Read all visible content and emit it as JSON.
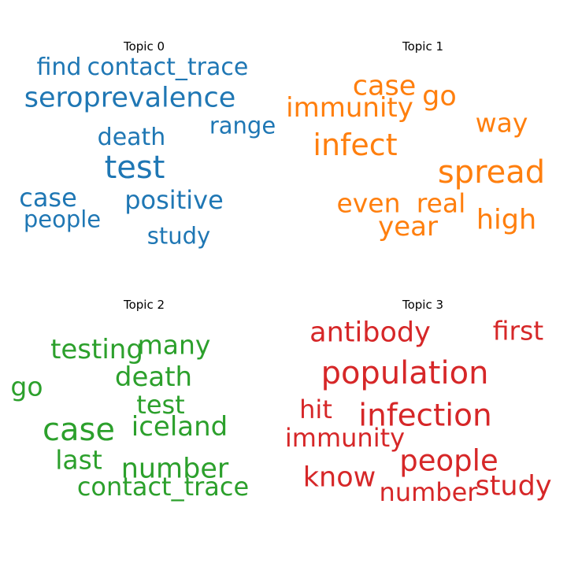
{
  "chart_data": [
    {
      "type": "wordcloud",
      "title": "Topic 0",
      "color": "#1f77b4",
      "words": [
        {
          "text": "test",
          "weight": 1.0
        },
        {
          "text": "seroprevalence",
          "weight": 0.82
        },
        {
          "text": "positive",
          "weight": 0.7
        },
        {
          "text": "case",
          "weight": 0.68
        },
        {
          "text": "contact_trace",
          "weight": 0.6
        },
        {
          "text": "find",
          "weight": 0.6
        },
        {
          "text": "death",
          "weight": 0.6
        },
        {
          "text": "range",
          "weight": 0.58
        },
        {
          "text": "people",
          "weight": 0.58
        },
        {
          "text": "study",
          "weight": 0.58
        }
      ]
    },
    {
      "type": "wordcloud",
      "title": "Topic 1",
      "color": "#ff7f0e",
      "words": [
        {
          "text": "spread",
          "weight": 1.0
        },
        {
          "text": "infect",
          "weight": 0.93
        },
        {
          "text": "case",
          "weight": 0.82
        },
        {
          "text": "go",
          "weight": 0.82
        },
        {
          "text": "high",
          "weight": 0.82
        },
        {
          "text": "immunity",
          "weight": 0.75
        },
        {
          "text": "year",
          "weight": 0.75
        },
        {
          "text": "even",
          "weight": 0.72
        },
        {
          "text": "real",
          "weight": 0.72
        },
        {
          "text": "way",
          "weight": 0.72
        }
      ]
    },
    {
      "type": "wordcloud",
      "title": "Topic 2",
      "color": "#2ca02c",
      "words": [
        {
          "text": "case",
          "weight": 1.0
        },
        {
          "text": "number",
          "weight": 0.82
        },
        {
          "text": "death",
          "weight": 0.76
        },
        {
          "text": "iceland",
          "weight": 0.76
        },
        {
          "text": "testing",
          "weight": 0.76
        },
        {
          "text": "many",
          "weight": 0.74
        },
        {
          "text": "last",
          "weight": 0.74
        },
        {
          "text": "go",
          "weight": 0.74
        },
        {
          "text": "contact_trace",
          "weight": 0.7
        },
        {
          "text": "test",
          "weight": 0.68
        }
      ]
    },
    {
      "type": "wordcloud",
      "title": "Topic 3",
      "color": "#d62728",
      "words": [
        {
          "text": "population",
          "weight": 1.0
        },
        {
          "text": "infection",
          "weight": 0.98
        },
        {
          "text": "people",
          "weight": 0.9
        },
        {
          "text": "antibody",
          "weight": 0.82
        },
        {
          "text": "study",
          "weight": 0.8
        },
        {
          "text": "know",
          "weight": 0.8
        },
        {
          "text": "first",
          "weight": 0.72
        },
        {
          "text": "number",
          "weight": 0.7
        },
        {
          "text": "immunity",
          "weight": 0.7
        },
        {
          "text": "hit",
          "weight": 0.68
        }
      ]
    }
  ]
}
